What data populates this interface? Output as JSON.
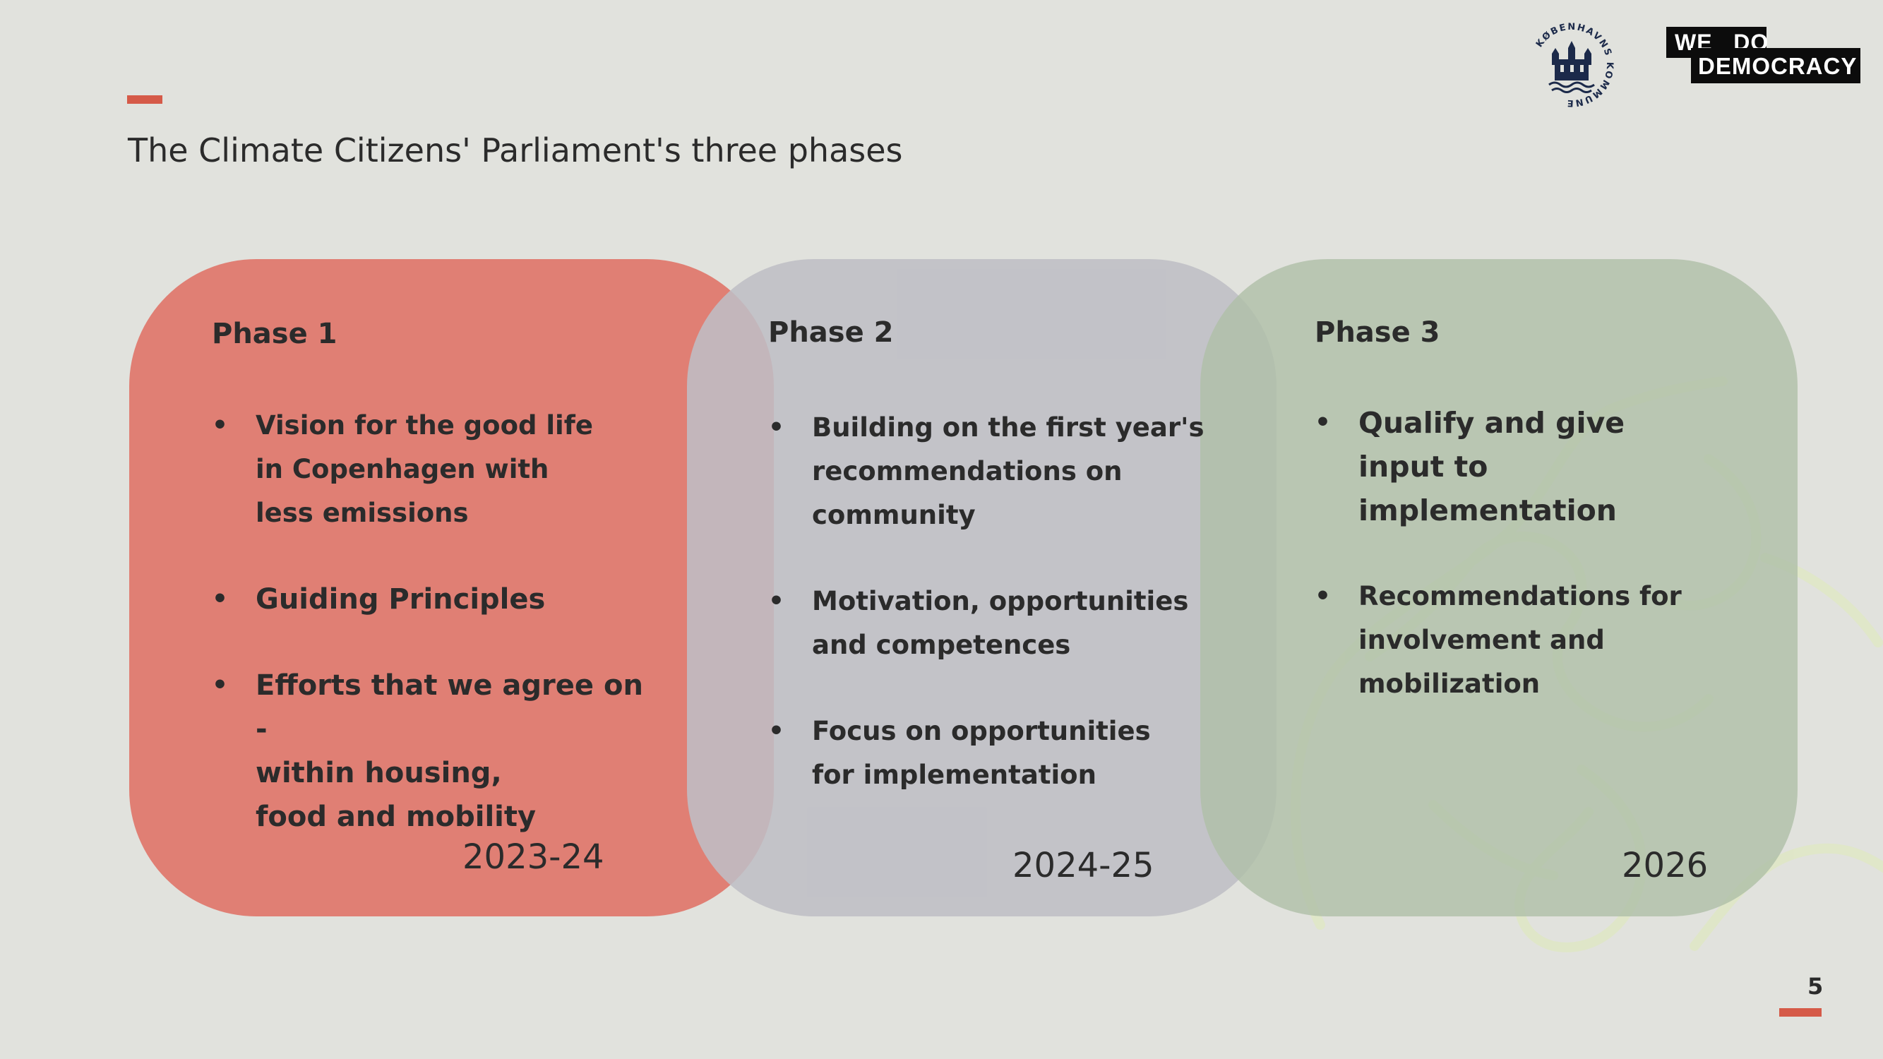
{
  "slide": {
    "title": "The Climate Citizens' Parliament's three phases",
    "page_number": "5"
  },
  "logos": {
    "seal_text": "KØBENHAVNS KOMMUNE",
    "wedo_line1": "WE   DO",
    "wedo_line2": "DEMOCRACY"
  },
  "colors": {
    "accent": "#d55a48",
    "phase1": "#e07f74",
    "phase2": "#bebec5",
    "phase3": "#b0c0a8",
    "background": "#e1e2dd"
  },
  "phases": [
    {
      "heading": "Phase 1",
      "bullets": [
        "Vision for the good life\nin Copenhagen with\nless emissions",
        "Guiding Principles",
        "Efforts that we agree on -\nwithin housing,\nfood and mobility"
      ],
      "year": "2023-24"
    },
    {
      "heading": "Phase 2",
      "bullets": [
        "Building on the first year's\nrecommendations on\ncommunity",
        "Motivation, opportunities\nand competences",
        "Focus on opportunities\nfor implementation"
      ],
      "year": "2024-25"
    },
    {
      "heading": "Phase 3",
      "bullets": [
        "Qualify and give\ninput to\nimplementation",
        "Recommendations for\ninvolvement and\nmobilization"
      ],
      "year": "2026"
    }
  ]
}
